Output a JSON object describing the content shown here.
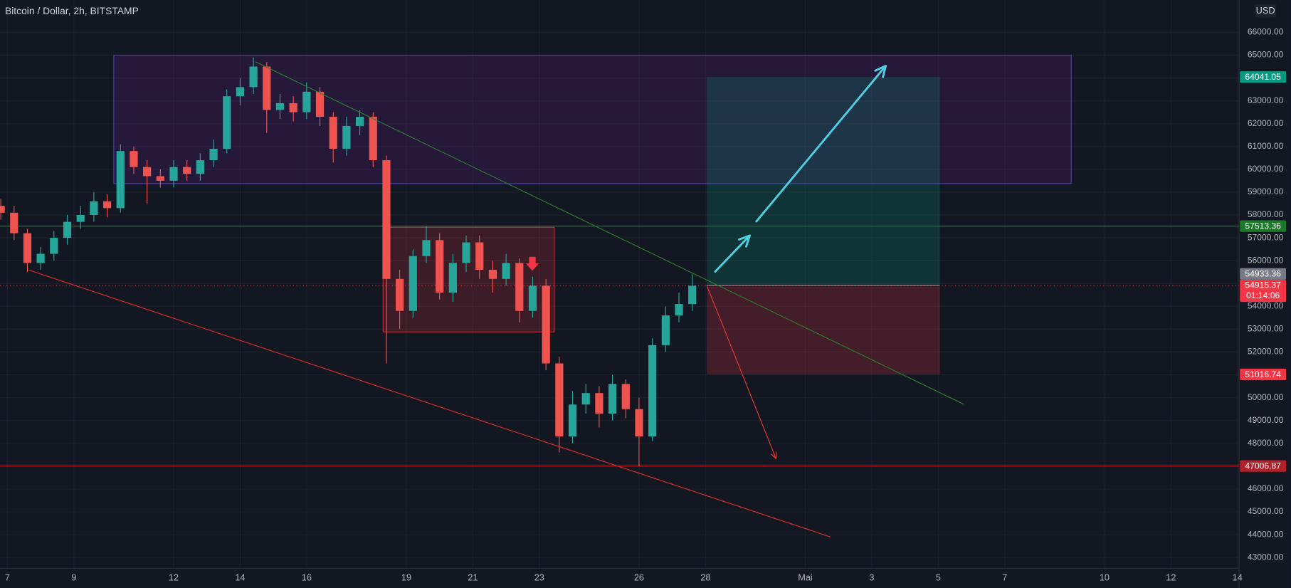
{
  "chart_data": {
    "type": "candlestick",
    "title": "Bitcoin / Dollar, 2h, BITSTAMP",
    "currency": "USD",
    "x": [
      6.8,
      7.2,
      7.6,
      8.0,
      8.4,
      8.8,
      9.2,
      9.6,
      10.0,
      10.4,
      10.8,
      11.2,
      11.6,
      12.0,
      12.4,
      12.8,
      13.2,
      13.6,
      14.0,
      14.4,
      14.8,
      15.2,
      15.6,
      16.0,
      16.4,
      16.8,
      17.2,
      17.6,
      18.0,
      18.4,
      18.8,
      19.2,
      19.6,
      20.0,
      20.4,
      20.8,
      21.2,
      21.6,
      22.0,
      22.4,
      22.8,
      23.2,
      23.6,
      24.0,
      24.4,
      24.8,
      25.2,
      25.6,
      26.0,
      26.4,
      26.8,
      27.2,
      27.6
    ],
    "open": [
      58400,
      58100,
      57200,
      55900,
      56300,
      57000,
      57700,
      58000,
      58600,
      58300,
      60800,
      60100,
      59700,
      59500,
      60100,
      59800,
      60400,
      60900,
      63200,
      63600,
      64500,
      62600,
      62900,
      62500,
      63400,
      62300,
      60900,
      61900,
      62300,
      60400,
      55200,
      53800,
      56200,
      56900,
      54600,
      55900,
      56800,
      55600,
      55200,
      55900,
      53800,
      54900,
      51500,
      48300,
      49700,
      50200,
      49300,
      50600,
      49500,
      48300,
      52300,
      53600,
      54100
    ],
    "high": [
      58700,
      58400,
      57400,
      56600,
      57300,
      58000,
      58400,
      59000,
      58900,
      61100,
      61000,
      60400,
      60000,
      60400,
      60400,
      60700,
      61300,
      63500,
      64000,
      64900,
      64700,
      63300,
      63200,
      63800,
      63600,
      62500,
      62300,
      62600,
      62500,
      60600,
      55600,
      56500,
      57500,
      57200,
      56300,
      57100,
      57100,
      56000,
      56300,
      56100,
      55300,
      55200,
      51800,
      50300,
      50600,
      50500,
      51000,
      50800,
      50000,
      52600,
      54000,
      54600,
      55400
    ],
    "low": [
      57800,
      56900,
      55500,
      55600,
      56000,
      56700,
      57400,
      57700,
      57900,
      58100,
      59800,
      58500,
      59200,
      59200,
      59500,
      59500,
      60100,
      60700,
      62800,
      63300,
      61600,
      62200,
      62100,
      62200,
      61900,
      60300,
      60600,
      61500,
      60100,
      51500,
      53000,
      53500,
      55900,
      54300,
      54200,
      55500,
      55200,
      54600,
      54900,
      53300,
      53500,
      51200,
      47600,
      48000,
      49300,
      48700,
      49000,
      49100,
      47000,
      48100,
      52000,
      53300,
      53800
    ],
    "close": [
      58100,
      57200,
      55900,
      56300,
      57000,
      57700,
      58000,
      58600,
      58300,
      60800,
      60100,
      59700,
      59500,
      60100,
      59800,
      60400,
      60900,
      63200,
      63600,
      64500,
      62600,
      62900,
      62500,
      63400,
      62300,
      60900,
      61900,
      62300,
      60400,
      55200,
      53800,
      56200,
      56900,
      54600,
      55900,
      56800,
      55600,
      55200,
      55900,
      53800,
      54900,
      51500,
      48300,
      49700,
      50200,
      49300,
      50600,
      49500,
      48300,
      52300,
      53600,
      54100,
      54900
    ],
    "up_color": "#26a69a",
    "down_color": "#ef5350",
    "xlim": [
      6.777,
      44.05
    ],
    "xticks": [
      7,
      9,
      12,
      14,
      16,
      19,
      21,
      23,
      26,
      28,
      {
        "value": 31,
        "label": "Mai"
      },
      {
        "value": 33,
        "label": "3"
      },
      {
        "value": 35,
        "label": "5"
      },
      {
        "value": 37,
        "label": "7"
      },
      {
        "value": 40,
        "label": "10"
      },
      {
        "value": 42,
        "label": "12"
      },
      {
        "value": 44,
        "label": "14"
      }
    ],
    "ylim": [
      42530,
      67415
    ],
    "yticks": [
      {
        "value": 43000,
        "label": "43000.00"
      },
      {
        "value": 44000,
        "label": "44000.00"
      },
      {
        "value": 45000,
        "label": "45000.00"
      },
      {
        "value": 46000,
        "label": "46000.00"
      },
      {
        "value": 47000,
        "label": "47000.00"
      },
      {
        "value": 48000,
        "label": "48000.00"
      },
      {
        "value": 49000,
        "label": "49000.00"
      },
      {
        "value": 50000,
        "label": "50000.00"
      },
      {
        "value": 51000,
        "label": "51000.00"
      },
      {
        "value": 52000,
        "label": "52000.00"
      },
      {
        "value": 53000,
        "label": "53000.00"
      },
      {
        "value": 54000,
        "label": "54000.00"
      },
      {
        "value": 55000,
        "label": "55000.00"
      },
      {
        "value": 56000,
        "label": "56000.00"
      },
      {
        "value": 57000,
        "label": "57000.00"
      },
      {
        "value": 58000,
        "label": "58000.00"
      },
      {
        "value": 59000,
        "label": "59000.00"
      },
      {
        "value": 60000,
        "label": "60000.00"
      },
      {
        "value": 61000,
        "label": "61000.00"
      },
      {
        "value": 62000,
        "label": "62000.00"
      },
      {
        "value": 63000,
        "label": "63000.00"
      },
      {
        "value": 64000,
        "label": "64000.00"
      },
      {
        "value": 65000,
        "label": "65000.00"
      },
      {
        "value": 66000,
        "label": "66000.00"
      }
    ],
    "grid": true,
    "price_tags": [
      {
        "value": 64041.05,
        "color": "#089981"
      },
      {
        "value": 57513.36,
        "color": "#1b7a2a",
        "line": "solid"
      },
      {
        "value": 54915.37,
        "color": "#f23645",
        "line": "dotted",
        "countdown": "01:14:06"
      },
      {
        "value": 54933.36,
        "color": "#787b86"
      },
      {
        "value": 51016.74,
        "color": "#f23645"
      },
      {
        "value": 47006.87,
        "color": "#b2202a",
        "line": "solid"
      }
    ],
    "zones": [
      {
        "x": [
          10.2,
          39.0
        ],
        "y": [
          59375,
          65000
        ],
        "fill": "rgba(123,31,162,0.18)",
        "stroke": "#4a3ad0"
      },
      {
        "x": [
          18.3,
          23.45
        ],
        "y": [
          52880,
          57460
        ],
        "fill": "rgba(242,54,69,0.18)",
        "stroke": "#c0303a"
      }
    ],
    "position": {
      "x": [
        28.04,
        35.05
      ],
      "target": 64041.05,
      "entry": 54915.37,
      "stop": 51016.74,
      "profit_fill": "rgba(8,153,129,0.22)",
      "loss_fill": "rgba(242,54,69,0.22)"
    },
    "trendlines": [
      {
        "x": [
          14.46,
          35.77
        ],
        "y": [
          64710,
          49710
        ],
        "color": "#2e7d32"
      },
      {
        "x": [
          7.64,
          31.76
        ],
        "y": [
          55590,
          43900
        ],
        "color": "#d32f2f"
      }
    ],
    "arrows": [
      {
        "x": [
          28.29,
          29.33
        ],
        "y": [
          55520,
          57100
        ],
        "color": "#4dd0e1",
        "width": 2.5
      },
      {
        "x": [
          29.53,
          33.42
        ],
        "y": [
          57720,
          64530
        ],
        "color": "#4dd0e1",
        "width": 2.5
      },
      {
        "x": [
          28.04,
          30.12
        ],
        "y": [
          54900,
          47330
        ],
        "color": "#e53935",
        "width": 1
      }
    ],
    "marker": {
      "x": 22.79,
      "y": 55880,
      "color": "#f23645"
    }
  }
}
